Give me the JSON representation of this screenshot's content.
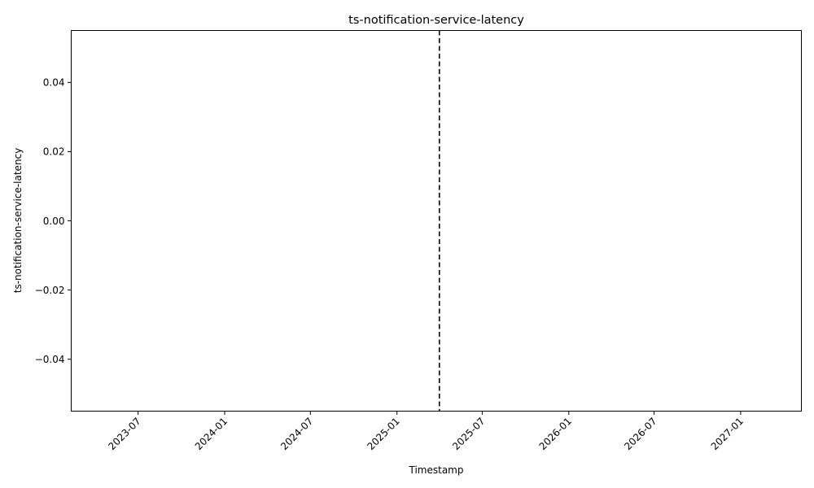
{
  "chart_data": {
    "type": "line",
    "title": "ts-notification-service-latency",
    "xlabel": "Timestamp",
    "ylabel": "ts-notification-service-latency",
    "x_axis_type": "date",
    "xlim": [
      "2023-02-09",
      "2027-05-10"
    ],
    "ylim": [
      -0.055,
      0.055
    ],
    "x_ticks": [
      "2023-07",
      "2024-01",
      "2024-07",
      "2025-01",
      "2025-07",
      "2026-01",
      "2026-07",
      "2027-01"
    ],
    "y_ticks": [
      0.04,
      0.02,
      0.0,
      -0.02,
      -0.04
    ],
    "y_tick_labels": [
      "0.04",
      "0.02",
      "0.00",
      "−0.02",
      "−0.04"
    ],
    "series": [],
    "vertical_line": {
      "x": "2025-04-01",
      "style": "dashed",
      "color": "#000000"
    },
    "grid": false,
    "legend": "none"
  }
}
